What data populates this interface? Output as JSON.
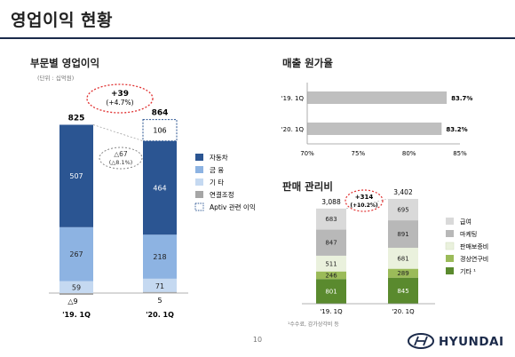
{
  "page": {
    "title": "영업이익 현황",
    "page_number": "10",
    "brand": "HYUNDAI"
  },
  "left": {
    "heading": "부문별 영업이익",
    "unit": "(단위 : 십억원)",
    "change_badge": {
      "value": "+39",
      "pct": "(+4.7%)"
    },
    "change_small": {
      "value": "△67",
      "pct": "(△8.1%)"
    },
    "legend": [
      "자동차",
      "금 융",
      "기 타",
      "연결조정",
      "Aptiv 관련 이익"
    ]
  },
  "right_top": {
    "heading": "매출 원가율"
  },
  "right_bottom": {
    "heading": "판매 관리비",
    "change_badge": {
      "value": "+314",
      "pct": "(+10.2%)"
    },
    "legend": [
      "급여",
      "마케팅",
      "판매보증비",
      "경상연구비",
      "기타 ¹"
    ],
    "footnote": "¹수수료, 감가상각비 등"
  },
  "colors": {
    "auto": "#2b5592",
    "finance": "#8db3e2",
    "other": "#c5d9f1",
    "consolidation": "#a6a6a6",
    "cogs_bar": "#bfbfbf",
    "salary": "#d9d9d9",
    "marketing": "#b8b8b8",
    "warranty": "#eaf1dd",
    "rnd": "#9bbb59",
    "sga_other": "#5a8a2e",
    "badge": "#e03030"
  },
  "chart_data": [
    {
      "type": "bar",
      "stacked": true,
      "categories": [
        "'19. 1Q",
        "'20. 1Q"
      ],
      "totals": [
        "825",
        "864"
      ],
      "series": [
        {
          "name": "자동차",
          "values": [
            507,
            464
          ]
        },
        {
          "name": "금 융",
          "values": [
            267,
            218
          ]
        },
        {
          "name": "기 타",
          "values": [
            59,
            71
          ]
        },
        {
          "name": "연결조정",
          "values": [
            -9,
            5
          ]
        },
        {
          "name": "Aptiv 관련 이익",
          "values": [
            0,
            106
          ]
        }
      ],
      "value_labels": [
        [
          "507",
          "267",
          "59",
          "△9"
        ],
        [
          "464",
          "218",
          "71",
          "5",
          "106"
        ]
      ]
    },
    {
      "type": "bar",
      "orientation": "horizontal",
      "categories": [
        "'19. 1Q",
        "'20. 1Q"
      ],
      "values": [
        83.7,
        83.2
      ],
      "value_labels": [
        "83.7%",
        "83.2%"
      ],
      "xlim": [
        70,
        85
      ],
      "xticks": [
        "70%",
        "75%",
        "80%",
        "85%"
      ]
    },
    {
      "type": "bar",
      "stacked": true,
      "categories": [
        "'19. 1Q",
        "'20. 1Q"
      ],
      "totals": [
        "3,088",
        "3,402"
      ],
      "series": [
        {
          "name": "기타 ¹",
          "values": [
            801,
            845
          ]
        },
        {
          "name": "경상연구비",
          "values": [
            246,
            289
          ]
        },
        {
          "name": "판매보증비",
          "values": [
            511,
            681
          ]
        },
        {
          "name": "마케팅",
          "values": [
            847,
            891
          ]
        },
        {
          "name": "급여",
          "values": [
            683,
            695
          ]
        }
      ]
    }
  ]
}
